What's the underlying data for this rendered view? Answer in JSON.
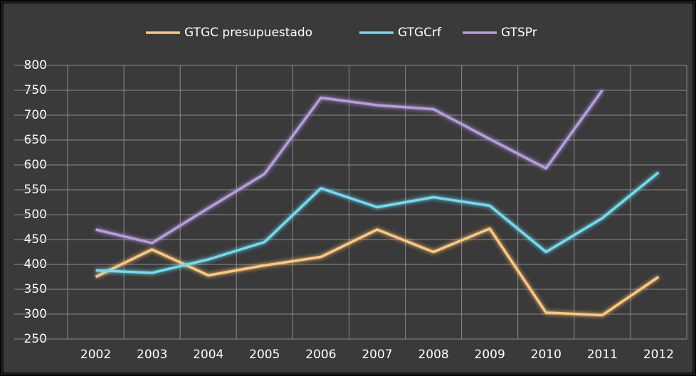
{
  "chart_data": {
    "type": "line",
    "categories": [
      "2002",
      "2003",
      "2004",
      "2005",
      "2006",
      "2007",
      "2008",
      "2009",
      "2010",
      "2011",
      "2012"
    ],
    "series": [
      {
        "name": "GTGC presupuestado",
        "color": "#ffc77a",
        "values": [
          375,
          430,
          378,
          398,
          415,
          470,
          425,
          472,
          303,
          298,
          375
        ]
      },
      {
        "name": "GTGCrf",
        "color": "#6fdcf2",
        "values": [
          388,
          383,
          410,
          445,
          553,
          515,
          535,
          518,
          425,
          493,
          585
        ]
      },
      {
        "name": "GTSPr",
        "color": "#b89be0",
        "values": [
          470,
          443,
          513,
          582,
          735,
          720,
          712,
          652,
          593,
          750,
          null
        ]
      }
    ],
    "ylim": [
      250,
      800
    ],
    "yticks": [
      250,
      300,
      350,
      400,
      450,
      500,
      550,
      600,
      650,
      700,
      750,
      800
    ],
    "grid": true,
    "legend": "top"
  }
}
